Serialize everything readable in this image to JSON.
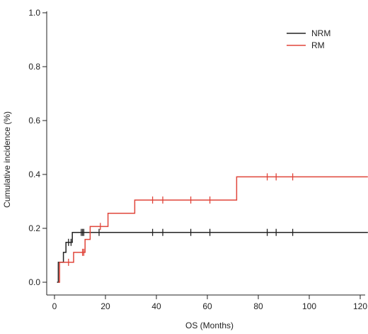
{
  "chart_data": {
    "type": "line",
    "step": true,
    "xlabel": "OS (Months)",
    "ylabel": "Cumulative incidence (%)",
    "xlim": [
      0,
      123
    ],
    "ylim": [
      0,
      1.0
    ],
    "x_ticks": [
      0,
      20,
      40,
      60,
      80,
      100,
      120
    ],
    "y_ticks": [
      0.0,
      0.2,
      0.4,
      0.6,
      0.8,
      1.0
    ],
    "x_tick_labels": [
      "0",
      "20",
      "40",
      "60",
      "80",
      "100",
      "120"
    ],
    "y_tick_labels": [
      "0.0",
      "0.2",
      "0.4",
      "0.6",
      "0.8",
      "1.0"
    ],
    "grid": false,
    "legend_position": "top-right",
    "series": [
      {
        "name": "NRM",
        "color": "#222222",
        "steps": [
          [
            1.0,
            0.0
          ],
          [
            1.5,
            0.074
          ],
          [
            3.5,
            0.111
          ],
          [
            4.5,
            0.148
          ],
          [
            7.0,
            0.185
          ],
          [
            123,
            0.185
          ]
        ],
        "censor_x": [
          5.5,
          6.5,
          10.5,
          11.0,
          11.5,
          17.5,
          38.5,
          42.5,
          53.5,
          61.0,
          83.5,
          87.0,
          93.5
        ]
      },
      {
        "name": "RM",
        "color": "#e0453a",
        "steps": [
          [
            1.5,
            0.0
          ],
          [
            2.0,
            0.074
          ],
          [
            7.5,
            0.111
          ],
          [
            12.0,
            0.159
          ],
          [
            14.0,
            0.207
          ],
          [
            21.0,
            0.256
          ],
          [
            31.5,
            0.305
          ],
          [
            71.5,
            0.391
          ],
          [
            123,
            0.391
          ]
        ],
        "censor_x": [
          5.5,
          11.0,
          11.5,
          18.0,
          38.5,
          42.5,
          53.5,
          61.0,
          83.5,
          87.0,
          93.5
        ]
      }
    ]
  }
}
